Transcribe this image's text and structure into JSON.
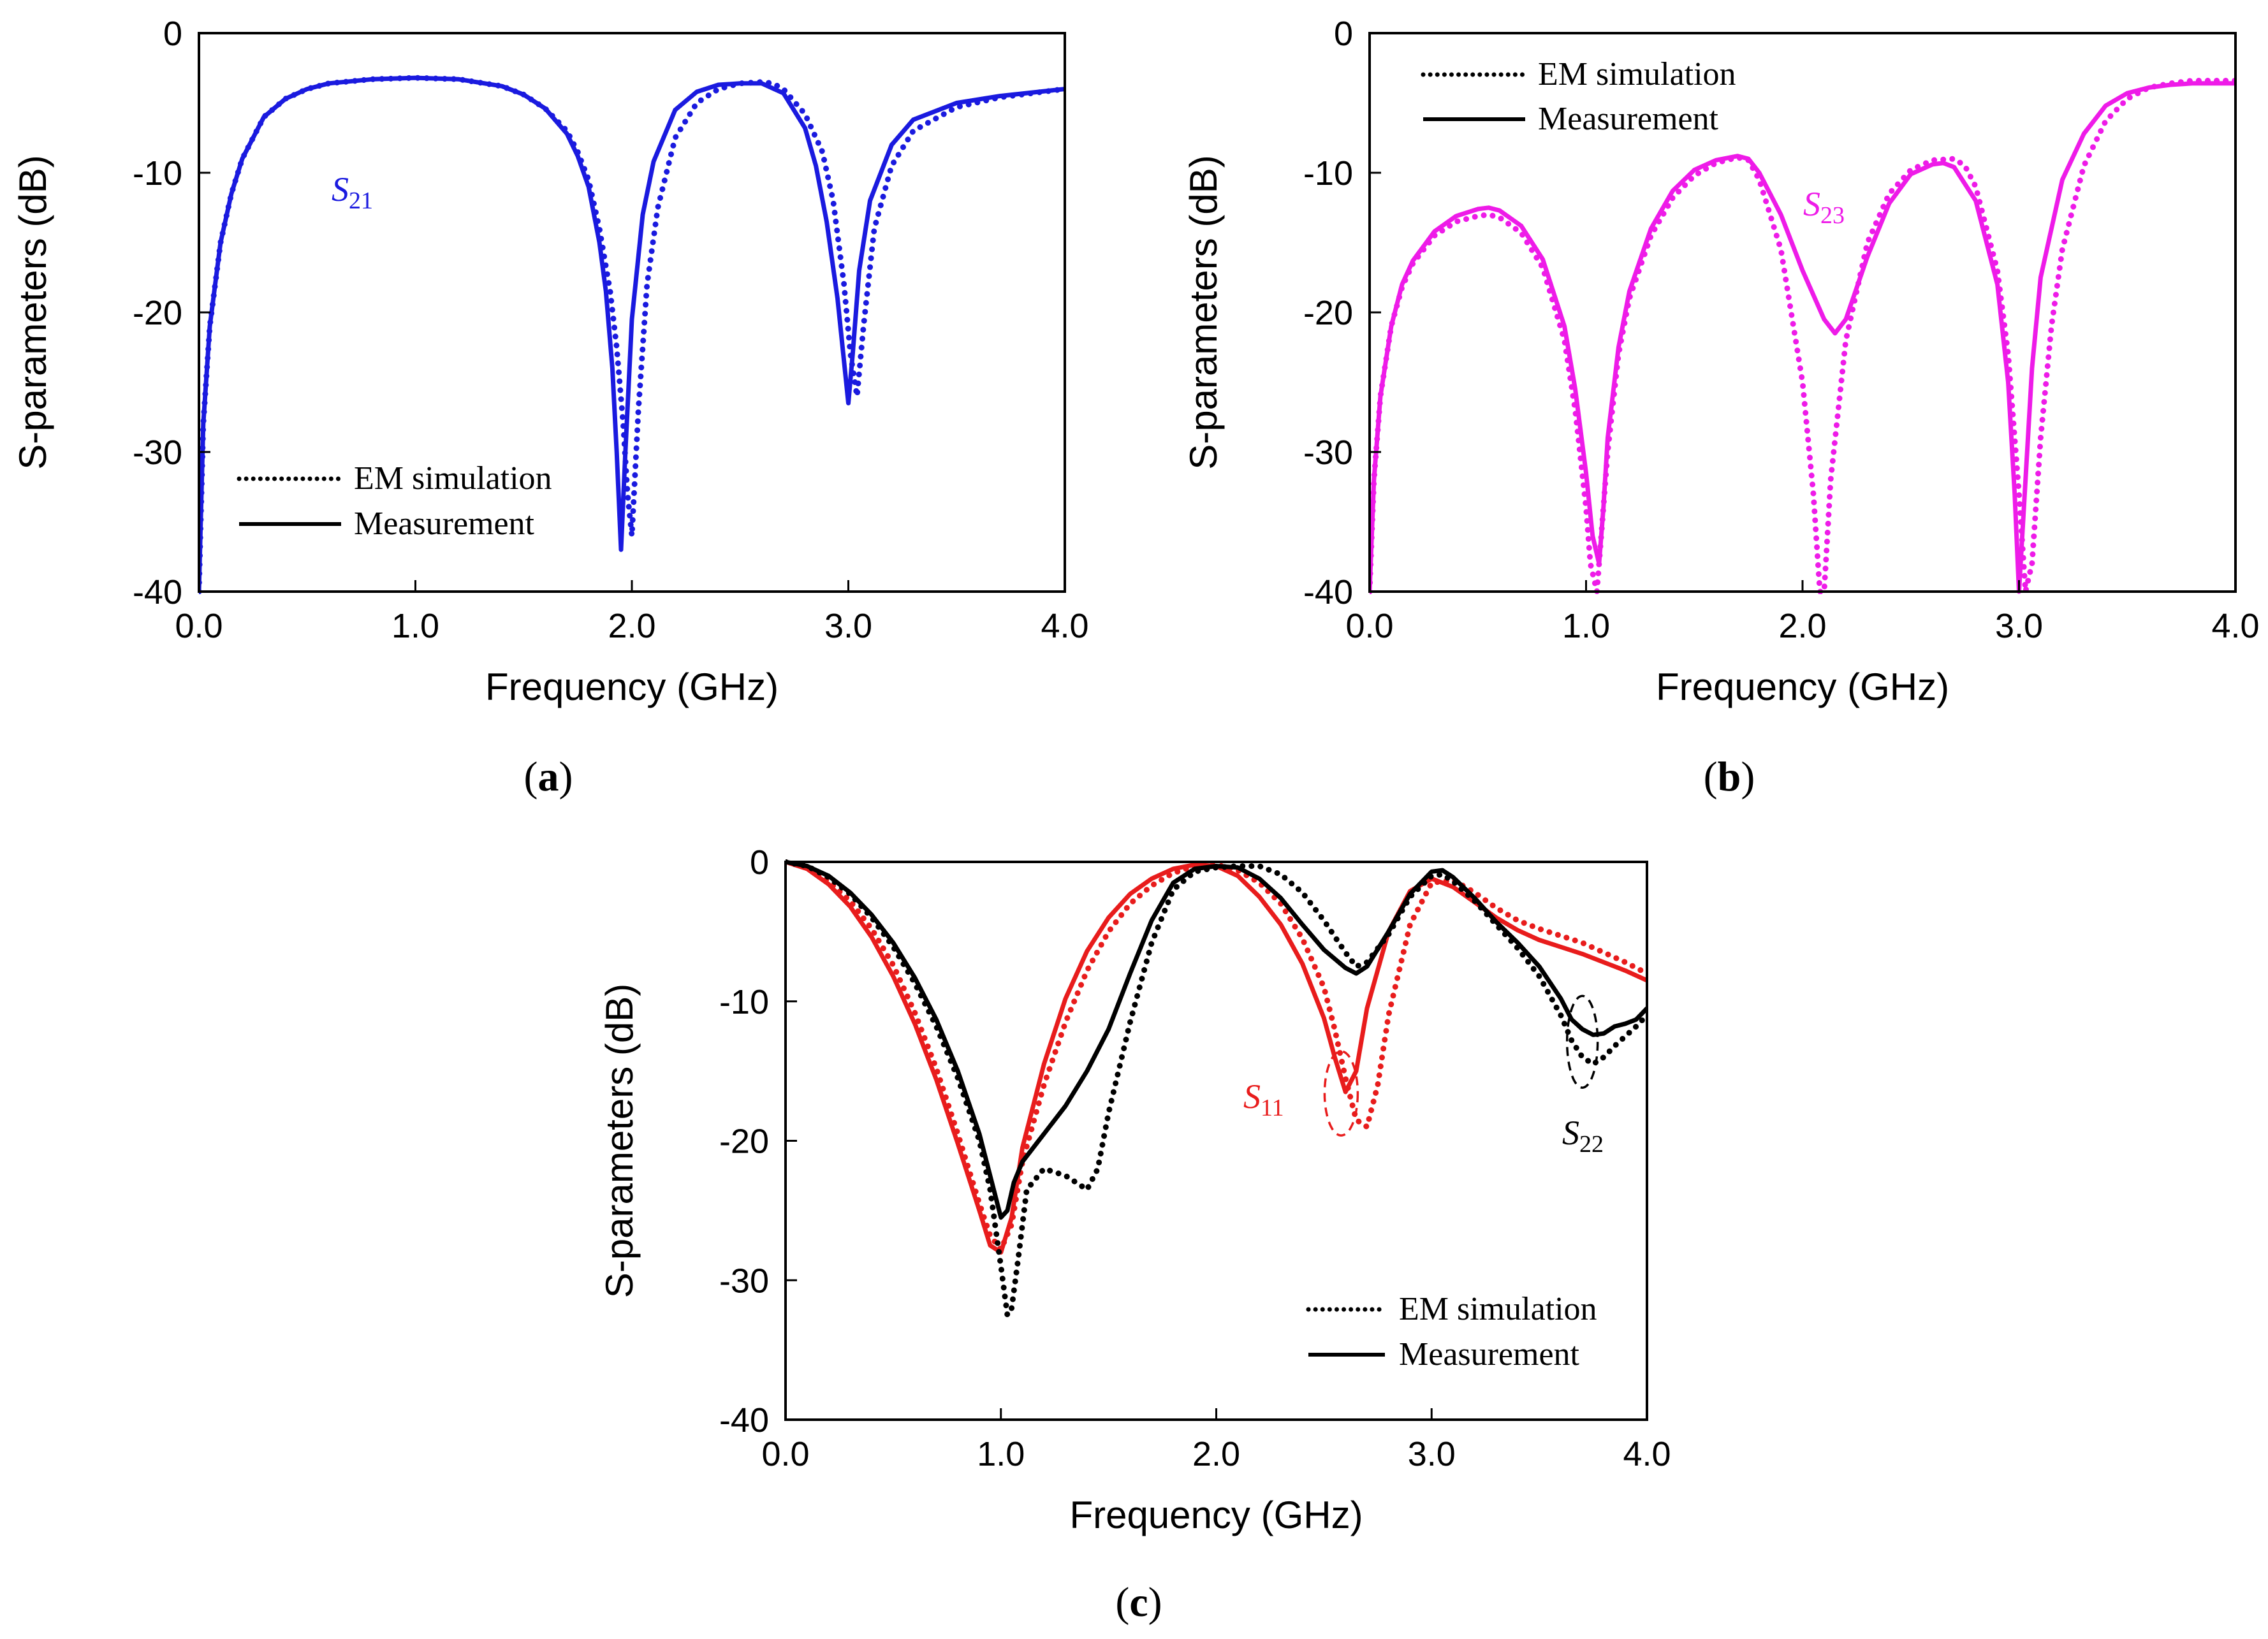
{
  "figure": {
    "labels": [
      "(a)",
      "(b)",
      "(c)"
    ]
  },
  "chart_data": [
    {
      "id": "a",
      "type": "line",
      "label": "(a)",
      "xlabel": "Frequency (GHz)",
      "ylabel": "S-parameters (dB)",
      "xlim": [
        0,
        4
      ],
      "ylim": [
        -40,
        0
      ],
      "xticks": [
        "0.0",
        "1.0",
        "2.0",
        "3.0",
        "4.0"
      ],
      "yticks": [
        "0",
        "-10",
        "-20",
        "-30",
        "-40"
      ],
      "legend": {
        "position": "bottom-left",
        "entries": [
          {
            "label": "EM simulation",
            "style": "dotted"
          },
          {
            "label": "Measurement",
            "style": "solid"
          }
        ]
      },
      "annotations": [
        {
          "base": "S",
          "sub": "21",
          "color": "#1a1adf"
        }
      ],
      "series": [
        {
          "name": "S21 Measurement",
          "style": "solid",
          "color": "#1a1adf",
          "x": [
            0.0,
            0.02,
            0.05,
            0.1,
            0.15,
            0.2,
            0.3,
            0.4,
            0.5,
            0.6,
            0.8,
            1.0,
            1.2,
            1.4,
            1.5,
            1.6,
            1.7,
            1.75,
            1.8,
            1.85,
            1.88,
            1.91,
            1.93,
            1.95,
            1.97,
            2.0,
            2.05,
            2.1,
            2.2,
            2.3,
            2.4,
            2.5,
            2.6,
            2.7,
            2.8,
            2.85,
            2.9,
            2.95,
            2.98,
            3.0,
            3.02,
            3.05,
            3.1,
            3.2,
            3.3,
            3.5,
            3.7,
            4.0
          ],
          "y": [
            -40,
            -28,
            -21,
            -15,
            -11.5,
            -9,
            -6,
            -4.7,
            -4,
            -3.6,
            -3.3,
            -3.2,
            -3.3,
            -3.8,
            -4.4,
            -5.4,
            -7.2,
            -8.8,
            -11,
            -15,
            -18.5,
            -24,
            -30,
            -37,
            -30,
            -20.5,
            -13,
            -9.2,
            -5.5,
            -4.2,
            -3.7,
            -3.6,
            -3.6,
            -4.3,
            -6.8,
            -9.5,
            -13.5,
            -19,
            -23.5,
            -26.5,
            -23,
            -17,
            -12,
            -8,
            -6.2,
            -5,
            -4.5,
            -4
          ]
        },
        {
          "name": "S21 EM simulation",
          "style": "dotted",
          "color": "#1a1adf",
          "x": [
            0.0,
            0.02,
            0.05,
            0.1,
            0.15,
            0.2,
            0.3,
            0.4,
            0.5,
            0.6,
            0.8,
            1.0,
            1.2,
            1.4,
            1.5,
            1.6,
            1.7,
            1.75,
            1.8,
            1.85,
            1.9,
            1.93,
            1.96,
            1.98,
            2.0,
            2.03,
            2.07,
            2.12,
            2.2,
            2.3,
            2.4,
            2.5,
            2.6,
            2.65,
            2.7,
            2.8,
            2.88,
            2.93,
            2.98,
            3.01,
            3.04,
            3.07,
            3.12,
            3.2,
            3.3,
            3.5,
            3.7,
            4.0
          ],
          "y": [
            -40,
            -28,
            -21,
            -15,
            -11.5,
            -9,
            -6,
            -4.7,
            -4,
            -3.6,
            -3.3,
            -3.2,
            -3.3,
            -3.8,
            -4.4,
            -5.4,
            -7.0,
            -8.5,
            -10.5,
            -14,
            -18.5,
            -22.5,
            -28,
            -33,
            -36,
            -27,
            -18,
            -12.5,
            -7.5,
            -5,
            -4,
            -3.6,
            -3.5,
            -3.6,
            -4,
            -5.8,
            -8.5,
            -12,
            -18,
            -23,
            -26,
            -21,
            -14,
            -9.5,
            -7,
            -5.3,
            -4.6,
            -4
          ]
        }
      ]
    },
    {
      "id": "b",
      "type": "line",
      "label": "(b)",
      "xlabel": "Frequency (GHz)",
      "ylabel": "S-parameters (dB)",
      "xlim": [
        0,
        4
      ],
      "ylim": [
        -40,
        0
      ],
      "xticks": [
        "0.0",
        "1.0",
        "2.0",
        "3.0",
        "4.0"
      ],
      "yticks": [
        "0",
        "-10",
        "-20",
        "-30",
        "-40"
      ],
      "legend": {
        "position": "top-left",
        "entries": [
          {
            "label": "EM simulation",
            "style": "dotted"
          },
          {
            "label": "Measurement",
            "style": "solid"
          }
        ]
      },
      "annotations": [
        {
          "base": "S",
          "sub": "23",
          "color": "#ee1be8"
        }
      ],
      "series": [
        {
          "name": "S23 Measurement",
          "style": "solid",
          "color": "#ee1be8",
          "x": [
            0.0,
            0.02,
            0.05,
            0.1,
            0.15,
            0.2,
            0.3,
            0.4,
            0.5,
            0.55,
            0.6,
            0.7,
            0.8,
            0.9,
            0.95,
            1.0,
            1.03,
            1.06,
            1.08,
            1.1,
            1.15,
            1.2,
            1.3,
            1.4,
            1.5,
            1.6,
            1.7,
            1.75,
            1.8,
            1.9,
            2.0,
            2.1,
            2.15,
            2.2,
            2.3,
            2.4,
            2.5,
            2.6,
            2.65,
            2.7,
            2.8,
            2.9,
            2.95,
            2.98,
            3.0,
            3.03,
            3.06,
            3.1,
            3.2,
            3.3,
            3.4,
            3.5,
            3.6,
            3.7,
            3.8,
            4.0
          ],
          "y": [
            -40,
            -32,
            -26,
            -21,
            -18,
            -16.3,
            -14.2,
            -13.1,
            -12.6,
            -12.5,
            -12.7,
            -13.8,
            -16.2,
            -21,
            -25.5,
            -31.5,
            -36,
            -38,
            -34,
            -29,
            -22.5,
            -18.5,
            -14,
            -11.3,
            -9.8,
            -9.1,
            -8.8,
            -9,
            -10,
            -13,
            -17,
            -20.5,
            -21.5,
            -20.5,
            -16,
            -12.2,
            -10.1,
            -9.4,
            -9.3,
            -9.6,
            -12,
            -18,
            -25,
            -33,
            -40,
            -32,
            -24,
            -17.5,
            -10.5,
            -7.2,
            -5.2,
            -4.3,
            -3.9,
            -3.7,
            -3.6,
            -3.6
          ]
        },
        {
          "name": "S23 EM simulation",
          "style": "dotted",
          "color": "#ee1be8",
          "x": [
            0.0,
            0.02,
            0.05,
            0.1,
            0.15,
            0.2,
            0.3,
            0.4,
            0.5,
            0.55,
            0.6,
            0.7,
            0.8,
            0.9,
            0.95,
            1.0,
            1.02,
            1.05,
            1.07,
            1.1,
            1.15,
            1.2,
            1.3,
            1.4,
            1.5,
            1.6,
            1.7,
            1.75,
            1.8,
            1.9,
            2.0,
            2.05,
            2.08,
            2.1,
            2.13,
            2.2,
            2.3,
            2.4,
            2.5,
            2.6,
            2.7,
            2.75,
            2.8,
            2.9,
            2.95,
            3.0,
            3.03,
            3.06,
            3.1,
            3.15,
            3.2,
            3.3,
            3.4,
            3.5,
            3.6,
            3.7,
            3.8,
            4.0
          ],
          "y": [
            -40,
            -32,
            -26,
            -21,
            -18.2,
            -16.5,
            -14.5,
            -13.5,
            -13.1,
            -13,
            -13.2,
            -14.3,
            -16.8,
            -22,
            -27,
            -34,
            -38,
            -40,
            -36,
            -30,
            -23,
            -19,
            -14.5,
            -11.8,
            -10.2,
            -9.3,
            -8.9,
            -9.1,
            -10.5,
            -15.5,
            -25,
            -33,
            -40,
            -40,
            -32,
            -22,
            -15,
            -11.5,
            -9.8,
            -9.1,
            -9,
            -9.5,
            -11,
            -17,
            -23,
            -33,
            -40,
            -38,
            -29,
            -21,
            -15.5,
            -9.5,
            -6.3,
            -4.7,
            -3.9,
            -3.6,
            -3.4,
            -3.4
          ]
        }
      ]
    },
    {
      "id": "c",
      "type": "line",
      "label": "(c)",
      "xlabel": "Frequency (GHz)",
      "ylabel": "S-parameters (dB)",
      "xlim": [
        0,
        4
      ],
      "ylim": [
        -40,
        0
      ],
      "xticks": [
        "0.0",
        "1.0",
        "2.0",
        "3.0",
        "4.0"
      ],
      "yticks": [
        "0",
        "-10",
        "-20",
        "-30",
        "-40"
      ],
      "legend": {
        "position": "bottom-right",
        "entries": [
          {
            "label": "EM simulation",
            "style": "dotted"
          },
          {
            "label": "Measurement",
            "style": "solid"
          }
        ]
      },
      "annotations": [
        {
          "base": "S",
          "sub": "11",
          "color": "#e81c1c"
        },
        {
          "base": "S",
          "sub": "22",
          "color": "#000000"
        }
      ],
      "series": [
        {
          "name": "S11 Measurement",
          "style": "solid",
          "color": "#e81c1c",
          "x": [
            0.0,
            0.1,
            0.2,
            0.3,
            0.4,
            0.5,
            0.6,
            0.7,
            0.8,
            0.9,
            0.95,
            1.0,
            1.05,
            1.1,
            1.2,
            1.3,
            1.4,
            1.5,
            1.6,
            1.7,
            1.8,
            1.9,
            2.0,
            2.1,
            2.2,
            2.3,
            2.4,
            2.5,
            2.55,
            2.6,
            2.65,
            2.7,
            2.8,
            2.9,
            3.0,
            3.1,
            3.2,
            3.3,
            3.4,
            3.5,
            3.6,
            3.7,
            3.8,
            3.9,
            4.0
          ],
          "y": [
            0,
            -0.5,
            -1.6,
            -3.2,
            -5.4,
            -8.2,
            -11.6,
            -15.6,
            -20.2,
            -25,
            -27.5,
            -28,
            -25.5,
            -20.5,
            -14.5,
            -9.8,
            -6.4,
            -4,
            -2.3,
            -1.2,
            -0.5,
            -0.2,
            -0.3,
            -1,
            -2.5,
            -4.5,
            -7.3,
            -11.2,
            -14,
            -16.5,
            -15,
            -10.5,
            -5,
            -2.1,
            -1.2,
            -1.8,
            -2.9,
            -4,
            -4.9,
            -5.6,
            -6.1,
            -6.6,
            -7.2,
            -7.8,
            -8.5
          ]
        },
        {
          "name": "S11 EM simulation",
          "style": "dotted",
          "color": "#e81c1c",
          "x": [
            0.0,
            0.1,
            0.2,
            0.3,
            0.4,
            0.5,
            0.6,
            0.7,
            0.8,
            0.9,
            0.95,
            1.0,
            1.05,
            1.1,
            1.2,
            1.3,
            1.4,
            1.5,
            1.6,
            1.7,
            1.8,
            1.9,
            2.0,
            2.1,
            2.2,
            2.3,
            2.4,
            2.5,
            2.55,
            2.6,
            2.65,
            2.7,
            2.75,
            2.8,
            2.9,
            3.0,
            3.1,
            3.2,
            3.3,
            3.4,
            3.5,
            3.6,
            3.7,
            3.8,
            3.9,
            4.0
          ],
          "y": [
            0,
            -0.4,
            -1.4,
            -2.8,
            -4.8,
            -7.4,
            -10.8,
            -14.8,
            -19.5,
            -24.5,
            -26.8,
            -27.8,
            -26,
            -21.5,
            -16,
            -11.5,
            -7.8,
            -5,
            -3,
            -1.7,
            -0.8,
            -0.3,
            -0.2,
            -0.6,
            -1.5,
            -3,
            -5.5,
            -9,
            -12,
            -15.5,
            -18.5,
            -19,
            -16,
            -11,
            -4.5,
            -1.5,
            -1.3,
            -2.2,
            -3.3,
            -4.2,
            -4.8,
            -5.3,
            -5.8,
            -6.5,
            -7.2,
            -8
          ]
        },
        {
          "name": "S22 Measurement",
          "style": "solid",
          "color": "#000000",
          "x": [
            0.0,
            0.1,
            0.2,
            0.3,
            0.4,
            0.5,
            0.6,
            0.7,
            0.8,
            0.9,
            0.95,
            1.0,
            1.03,
            1.06,
            1.1,
            1.2,
            1.3,
            1.4,
            1.5,
            1.6,
            1.7,
            1.8,
            1.9,
            2.0,
            2.1,
            2.2,
            2.3,
            2.4,
            2.5,
            2.6,
            2.65,
            2.7,
            2.8,
            2.9,
            3.0,
            3.05,
            3.1,
            3.2,
            3.3,
            3.4,
            3.5,
            3.6,
            3.65,
            3.7,
            3.75,
            3.8,
            3.85,
            3.9,
            3.95,
            4.0
          ],
          "y": [
            0,
            -0.3,
            -1,
            -2.2,
            -3.8,
            -5.8,
            -8.3,
            -11.3,
            -15,
            -19.5,
            -22.5,
            -25.5,
            -25,
            -23,
            -21.5,
            -19.5,
            -17.5,
            -15,
            -12,
            -8,
            -4.2,
            -1.5,
            -0.5,
            -0.3,
            -0.4,
            -1.2,
            -2.6,
            -4.5,
            -6.3,
            -7.6,
            -8.0,
            -7.5,
            -5,
            -2.3,
            -0.7,
            -0.6,
            -1.1,
            -2.6,
            -4.3,
            -5.8,
            -7.5,
            -9.8,
            -11.3,
            -12,
            -12.4,
            -12.3,
            -11.8,
            -11.6,
            -11.3,
            -10.5
          ]
        },
        {
          "name": "S22 EM simulation",
          "style": "dotted",
          "color": "#000000",
          "x": [
            0.0,
            0.1,
            0.2,
            0.3,
            0.4,
            0.5,
            0.6,
            0.7,
            0.8,
            0.9,
            0.95,
            1.0,
            1.03,
            1.05,
            1.08,
            1.12,
            1.2,
            1.3,
            1.35,
            1.4,
            1.45,
            1.5,
            1.6,
            1.7,
            1.8,
            1.9,
            2.0,
            2.1,
            2.2,
            2.3,
            2.4,
            2.5,
            2.6,
            2.65,
            2.7,
            2.8,
            2.9,
            3.0,
            3.05,
            3.1,
            3.2,
            3.3,
            3.4,
            3.5,
            3.6,
            3.65,
            3.7,
            3.75,
            3.8,
            3.85,
            3.9,
            3.95,
            4.0
          ],
          "y": [
            0,
            -0.3,
            -1.1,
            -2.3,
            -4,
            -6.1,
            -8.7,
            -11.8,
            -15.5,
            -20,
            -23.5,
            -29,
            -32.5,
            -32,
            -28.5,
            -23.5,
            -22,
            -22.5,
            -23,
            -23.5,
            -22,
            -18,
            -11.5,
            -5.8,
            -2,
            -0.7,
            -0.4,
            -0.3,
            -0.3,
            -0.9,
            -2.2,
            -4.2,
            -6.5,
            -7.5,
            -7.2,
            -5.2,
            -2.5,
            -1,
            -0.9,
            -1.4,
            -2.8,
            -4.5,
            -6.2,
            -8.2,
            -11,
            -12.8,
            -14,
            -14.5,
            -14,
            -13.2,
            -12.5,
            -11.8,
            -11
          ]
        }
      ]
    }
  ]
}
